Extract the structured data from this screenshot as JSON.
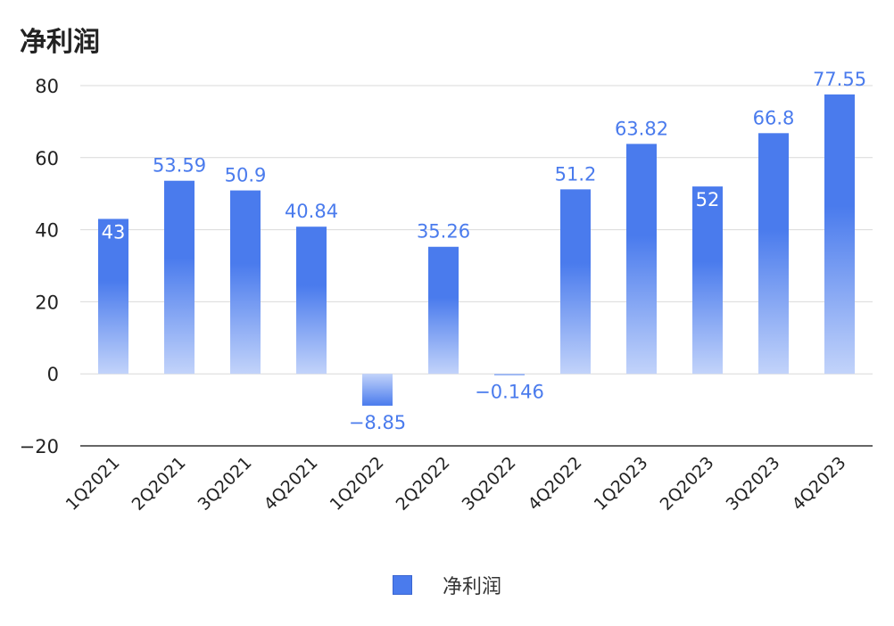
{
  "chart_data": {
    "type": "bar",
    "title": "净利润",
    "categories": [
      "1Q2021",
      "2Q2021",
      "3Q2021",
      "4Q2021",
      "1Q2022",
      "2Q2022",
      "3Q2022",
      "4Q2022",
      "1Q2023",
      "2Q2023",
      "3Q2023",
      "4Q2023"
    ],
    "series": [
      {
        "name": "净利润",
        "values": [
          43,
          53.59,
          50.9,
          40.84,
          -8.85,
          35.26,
          -0.146,
          51.2,
          63.82,
          52,
          66.8,
          77.55
        ]
      }
    ],
    "data_labels": [
      "43",
      "53.59",
      "50.9",
      "40.84",
      "−8.85",
      "35.26",
      "−0.146",
      "51.2",
      "63.82",
      "52",
      "66.8",
      "77.55"
    ],
    "y_ticks": [
      80,
      60,
      40,
      20,
      0,
      -20
    ],
    "y_tick_labels": [
      "80",
      "60",
      "40",
      "20",
      "0",
      "−20"
    ],
    "ylim": [
      -20,
      80
    ],
    "grid": true,
    "legend_position": "bottom-center",
    "colors": {
      "bar_top": "#4a7bed",
      "bar_bottom": "#c2d3fa",
      "label": "#4a7bed"
    }
  }
}
